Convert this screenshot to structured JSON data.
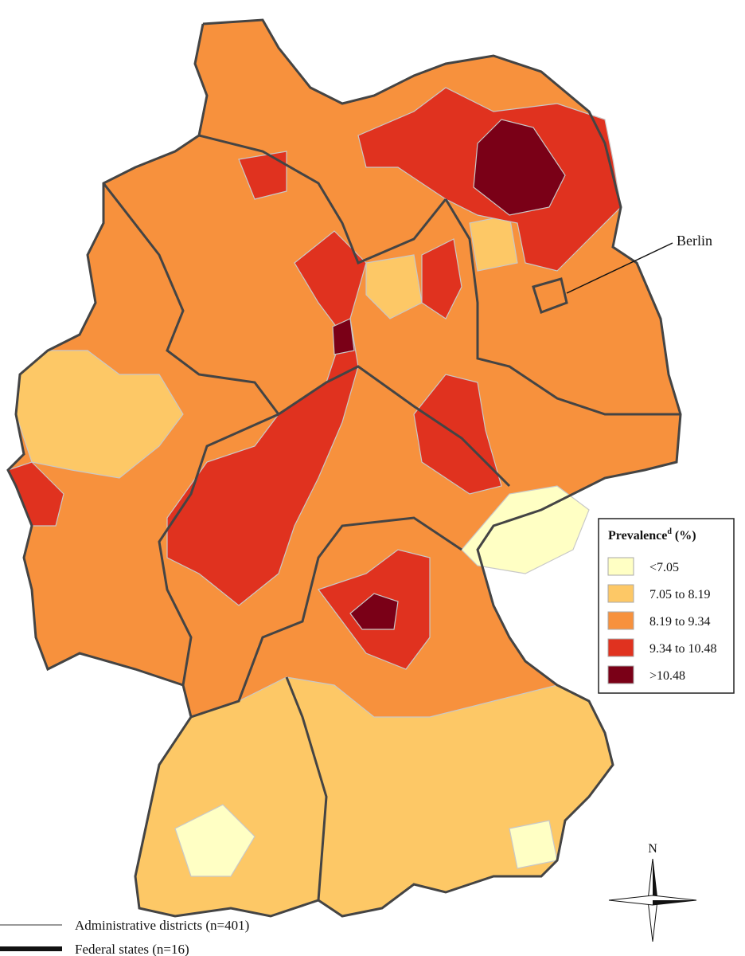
{
  "map": {
    "label_berlin": "Berlin",
    "compass": "N"
  },
  "legend": {
    "title": "Prevalence",
    "title_sup": "d",
    "title_unit": "(%)",
    "items": [
      {
        "label": "<7.05",
        "color": "#ffffc4"
      },
      {
        "label": "7.05 to 8.19",
        "color": "#fdc866"
      },
      {
        "label": "8.19 to 9.34",
        "color": "#f7913d"
      },
      {
        "label": "9.34 to 10.48",
        "color": "#e0321f"
      },
      {
        "label": ">10.48",
        "color": "#7a0017"
      }
    ]
  },
  "line_legend": [
    {
      "label": "Administrative districts (n=401)"
    },
    {
      "label": "Federal states (n=16)"
    }
  ]
}
